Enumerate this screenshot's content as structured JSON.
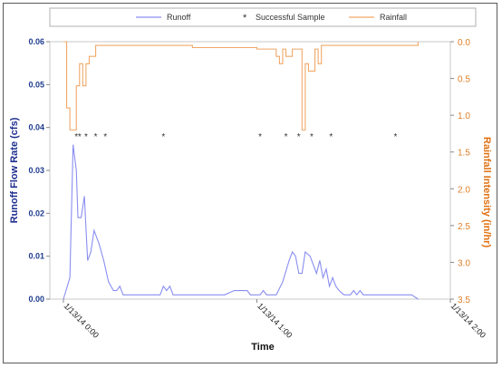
{
  "chart_data": {
    "type": "line",
    "xlabel": "Time",
    "ylabel_left": "Runoff Flow Rate (cfs)",
    "ylabel_right": "Rainfall Intensity (in/hr)",
    "x_ticks": [
      "1/13/14 0:00",
      "1/13/14 1:00",
      "1/13/14 2:00"
    ],
    "x_tick_minutes": [
      0,
      60,
      120
    ],
    "x_range_minutes": [
      0,
      120
    ],
    "y_left_range": [
      0,
      0.06
    ],
    "y_left_ticks": [
      "0.00",
      "0.01",
      "0.02",
      "0.03",
      "0.04",
      "0.05",
      "0.06"
    ],
    "y_right_range": [
      0,
      3.5
    ],
    "y_right_inverted": true,
    "y_right_ticks": [
      "0.0",
      "0.5",
      "1.0",
      "1.5",
      "2.0",
      "2.5",
      "3.0",
      "3.5"
    ],
    "grid": false,
    "legend_position": "top",
    "legend": [
      "Runoff",
      "Successful Sample",
      "Rainfall"
    ],
    "series": [
      {
        "name": "Runoff",
        "color": "#8a8ef0",
        "points": [
          [
            0,
            0
          ],
          [
            2,
            0.005
          ],
          [
            3,
            0.036
          ],
          [
            4,
            0.03
          ],
          [
            4.5,
            0.019
          ],
          [
            5.5,
            0.019
          ],
          [
            6.5,
            0.024
          ],
          [
            7.5,
            0.009
          ],
          [
            8.5,
            0.011
          ],
          [
            9.5,
            0.016
          ],
          [
            11,
            0.013
          ],
          [
            12.5,
            0.009
          ],
          [
            14,
            0.004
          ],
          [
            15.5,
            0.002
          ],
          [
            16.5,
            0.002
          ],
          [
            17.5,
            0.003
          ],
          [
            18.5,
            0.001
          ],
          [
            30,
            0.001
          ],
          [
            31,
            0.003
          ],
          [
            32,
            0.002
          ],
          [
            33,
            0.003
          ],
          [
            34,
            0.001
          ],
          [
            50,
            0.001
          ],
          [
            53,
            0.002
          ],
          [
            57,
            0.002
          ],
          [
            58,
            0.001
          ],
          [
            61,
            0.001
          ],
          [
            62,
            0.002
          ],
          [
            63,
            0.001
          ],
          [
            66,
            0.001
          ],
          [
            68,
            0.004
          ],
          [
            70,
            0.009
          ],
          [
            71,
            0.011
          ],
          [
            72,
            0.01
          ],
          [
            73,
            0.006
          ],
          [
            74,
            0.006
          ],
          [
            75,
            0.011
          ],
          [
            76.5,
            0.01
          ],
          [
            77.5,
            0.008
          ],
          [
            78.5,
            0.006
          ],
          [
            79.5,
            0.009
          ],
          [
            80.5,
            0.005
          ],
          [
            81.5,
            0.007
          ],
          [
            82.5,
            0.003
          ],
          [
            83.5,
            0.005
          ],
          [
            84.5,
            0.003
          ],
          [
            85.5,
            0.002
          ],
          [
            87,
            0.001
          ],
          [
            89,
            0.001
          ],
          [
            90,
            0.002
          ],
          [
            91,
            0.001
          ],
          [
            92,
            0.002
          ],
          [
            93,
            0.001
          ],
          [
            108,
            0.001
          ],
          [
            110,
            0.0
          ]
        ]
      },
      {
        "name": "Successful Sample",
        "marker": "*",
        "color": "#333333",
        "x_minutes": [
          4,
          5,
          7,
          10,
          13,
          31,
          61,
          69,
          73,
          77,
          83,
          103
        ]
      },
      {
        "name": "Rainfall",
        "color": "#f0a868",
        "step": true,
        "points": [
          [
            0,
            0
          ],
          [
            1,
            0.9
          ],
          [
            2,
            1.2
          ],
          [
            4,
            0.6
          ],
          [
            5,
            0.3
          ],
          [
            6,
            0.6
          ],
          [
            7,
            0.3
          ],
          [
            8,
            0.2
          ],
          [
            10,
            0.05
          ],
          [
            40,
            0.08
          ],
          [
            60,
            0.1
          ],
          [
            66,
            0.2
          ],
          [
            67,
            0.3
          ],
          [
            68,
            0.1
          ],
          [
            69,
            0.2
          ],
          [
            71,
            0.1
          ],
          [
            74,
            1.2
          ],
          [
            75,
            0.3
          ],
          [
            76,
            0.4
          ],
          [
            78,
            0.1
          ],
          [
            79,
            0.3
          ],
          [
            80,
            0.05
          ],
          [
            110,
            0.0
          ]
        ]
      }
    ]
  }
}
